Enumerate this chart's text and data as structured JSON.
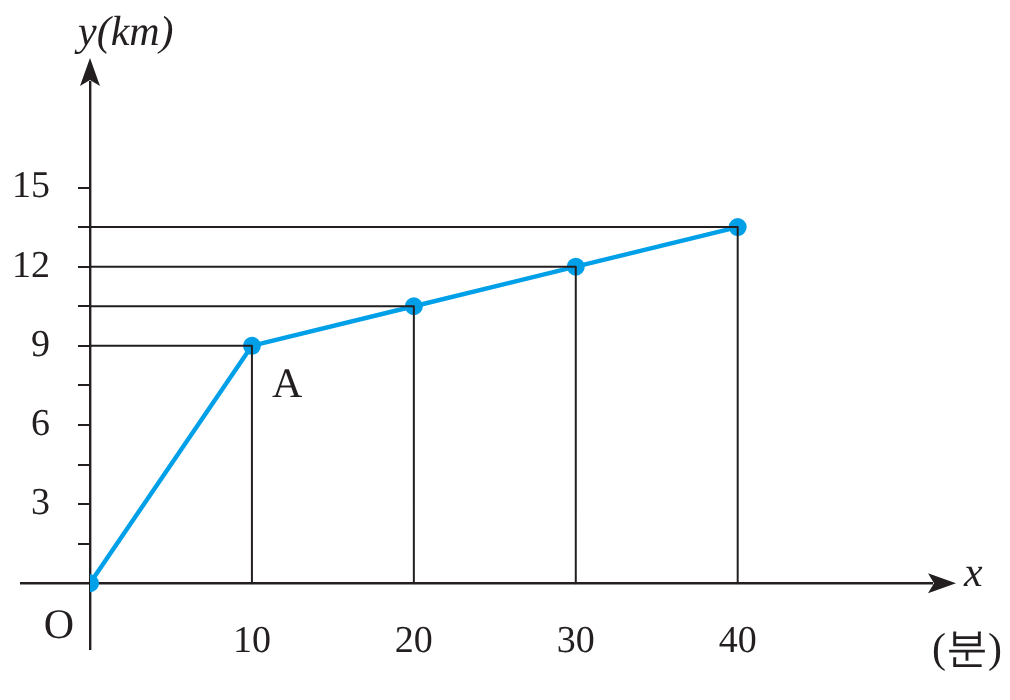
{
  "chart_data": {
    "type": "line",
    "xlabel": "x",
    "ylabel": "y(km)",
    "x": [
      0,
      10,
      20,
      30,
      40
    ],
    "series": [
      {
        "type": "line",
        "color": "#231f20",
        "marker": "none",
        "x": [
          0,
          10,
          10
        ],
        "values": [
          9,
          9,
          0
        ]
      },
      {
        "type": "line",
        "color": "#231f20",
        "marker": "none",
        "x": [
          0,
          20,
          20
        ],
        "values": [
          10.5,
          10.5,
          0
        ]
      },
      {
        "type": "line",
        "color": "#231f20",
        "marker": "none",
        "x": [
          0,
          30,
          30
        ],
        "values": [
          12,
          12,
          0
        ]
      },
      {
        "type": "line",
        "color": "#231f20",
        "marker": "none",
        "x": [
          0,
          40,
          40
        ],
        "values": [
          13.5,
          13.5,
          0
        ]
      },
      {
        "color": "#00a0e9",
        "values": [
          0,
          9,
          10.5,
          12,
          13.5
        ]
      }
    ],
    "xlim": [
      0,
      52
    ],
    "ylim": [
      -2.5,
      19
    ],
    "xticks": [
      10,
      20,
      30,
      40
    ],
    "yticks": [
      {
        "value": 1.5,
        "label": null
      },
      3,
      {
        "value": 4.5,
        "label": null
      },
      6,
      {
        "value": 7.5,
        "label": null
      },
      9,
      {
        "value": 10.5,
        "label": null
      },
      12,
      {
        "value": 13.5,
        "label": null
      },
      15
    ],
    "marker": "circle",
    "grid": false,
    "legend": false,
    "annotations": [
      {
        "text": "O",
        "x": 0,
        "y": 0
      },
      {
        "text": "A",
        "x": 10,
        "y": 9
      },
      "(분)"
    ]
  }
}
